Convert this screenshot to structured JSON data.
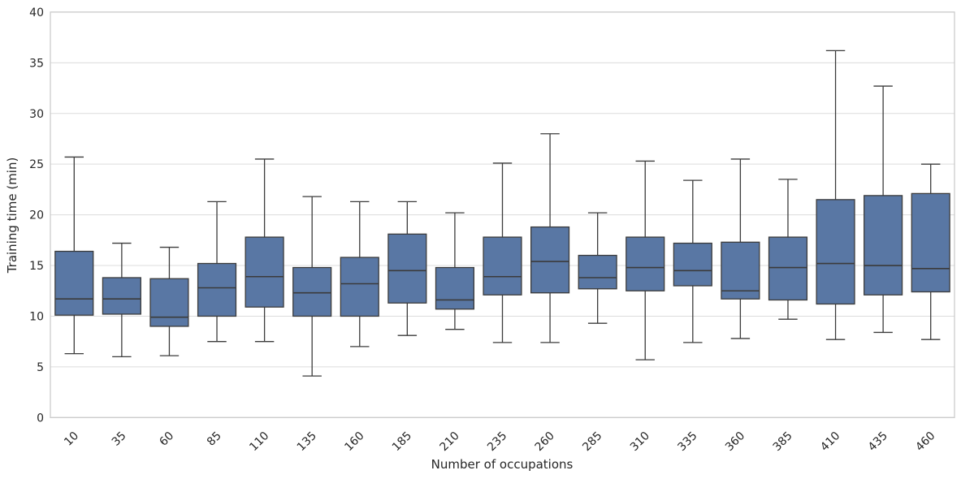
{
  "chart_data": {
    "type": "box",
    "xlabel": "Number of occupations",
    "ylabel": "Training time (min)",
    "ylim": [
      0,
      40
    ],
    "yticks": [
      0,
      5,
      10,
      15,
      20,
      25,
      30,
      35,
      40
    ],
    "grid": true,
    "show_fliers": false,
    "categories": [
      "10",
      "35",
      "60",
      "85",
      "110",
      "135",
      "160",
      "185",
      "210",
      "235",
      "260",
      "285",
      "310",
      "335",
      "360",
      "385",
      "410",
      "435",
      "460"
    ],
    "boxes": [
      {
        "category": "10",
        "whisker_low": 6.3,
        "q1": 10.1,
        "median": 11.7,
        "q3": 16.4,
        "whisker_high": 25.7
      },
      {
        "category": "35",
        "whisker_low": 6.0,
        "q1": 10.2,
        "median": 11.7,
        "q3": 13.8,
        "whisker_high": 17.2
      },
      {
        "category": "60",
        "whisker_low": 6.1,
        "q1": 9.0,
        "median": 9.9,
        "q3": 13.7,
        "whisker_high": 16.8
      },
      {
        "category": "85",
        "whisker_low": 7.5,
        "q1": 10.0,
        "median": 12.8,
        "q3": 15.2,
        "whisker_high": 21.3
      },
      {
        "category": "110",
        "whisker_low": 7.5,
        "q1": 10.9,
        "median": 13.9,
        "q3": 17.8,
        "whisker_high": 25.5
      },
      {
        "category": "135",
        "whisker_low": 4.1,
        "q1": 10.0,
        "median": 12.3,
        "q3": 14.8,
        "whisker_high": 21.8
      },
      {
        "category": "160",
        "whisker_low": 7.0,
        "q1": 10.0,
        "median": 13.2,
        "q3": 15.8,
        "whisker_high": 21.3
      },
      {
        "category": "185",
        "whisker_low": 8.1,
        "q1": 11.3,
        "median": 14.5,
        "q3": 18.1,
        "whisker_high": 21.3
      },
      {
        "category": "210",
        "whisker_low": 8.7,
        "q1": 10.7,
        "median": 11.6,
        "q3": 14.8,
        "whisker_high": 20.2
      },
      {
        "category": "235",
        "whisker_low": 7.4,
        "q1": 12.1,
        "median": 13.9,
        "q3": 17.8,
        "whisker_high": 25.1
      },
      {
        "category": "260",
        "whisker_low": 7.4,
        "q1": 12.3,
        "median": 15.4,
        "q3": 18.8,
        "whisker_high": 28.0
      },
      {
        "category": "285",
        "whisker_low": 9.3,
        "q1": 12.7,
        "median": 13.8,
        "q3": 16.0,
        "whisker_high": 20.2
      },
      {
        "category": "310",
        "whisker_low": 5.7,
        "q1": 12.5,
        "median": 14.8,
        "q3": 17.8,
        "whisker_high": 25.3
      },
      {
        "category": "335",
        "whisker_low": 7.4,
        "q1": 13.0,
        "median": 14.5,
        "q3": 17.2,
        "whisker_high": 23.4
      },
      {
        "category": "360",
        "whisker_low": 7.8,
        "q1": 11.7,
        "median": 12.5,
        "q3": 17.3,
        "whisker_high": 25.5
      },
      {
        "category": "385",
        "whisker_low": 9.7,
        "q1": 11.6,
        "median": 14.8,
        "q3": 17.8,
        "whisker_high": 23.5
      },
      {
        "category": "410",
        "whisker_low": 7.7,
        "q1": 11.2,
        "median": 15.2,
        "q3": 21.5,
        "whisker_high": 36.2
      },
      {
        "category": "435",
        "whisker_low": 8.4,
        "q1": 12.1,
        "median": 15.0,
        "q3": 21.9,
        "whisker_high": 32.7
      },
      {
        "category": "460",
        "whisker_low": 7.7,
        "q1": 12.4,
        "median": 14.7,
        "q3": 22.1,
        "whisker_high": 25.0
      }
    ],
    "colors": {
      "box_fill": "#5977a4",
      "box_edge": "#3b3b3b",
      "median_line": "#3b3b3b",
      "whisker": "#3b3b3b",
      "grid": "#dcdcdc",
      "spine": "#c9c9c9",
      "text": "#262626",
      "background": "#ffffff"
    }
  }
}
